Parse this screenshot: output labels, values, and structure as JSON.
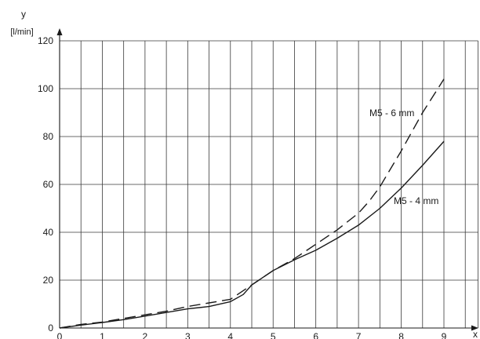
{
  "chart_data": {
    "type": "line",
    "xlabel": "x",
    "ylabel": "y",
    "yunit": "[l/min]",
    "xlim": [
      0,
      9.8
    ],
    "ylim": [
      0,
      120
    ],
    "xticks": [
      0,
      1,
      2,
      3,
      4,
      5,
      6,
      7,
      8,
      9
    ],
    "yticks": [
      0,
      20,
      40,
      60,
      80,
      100,
      120
    ],
    "grid": true,
    "series": [
      {
        "name": "M5 - 6 mm",
        "style": "dashed",
        "color": "#1a1a1a",
        "x": [
          0,
          0.5,
          1,
          1.5,
          2,
          2.5,
          3,
          3.5,
          4,
          4.5,
          5,
          5.5,
          6,
          6.5,
          7,
          7.25,
          7.5,
          8,
          8.5,
          9
        ],
        "y": [
          0,
          1.5,
          2.5,
          4,
          5.5,
          7,
          9,
          10.5,
          12,
          18,
          24,
          29,
          35,
          41,
          48,
          53,
          59,
          74,
          90,
          104
        ]
      },
      {
        "name": "M5 - 4 mm",
        "style": "solid",
        "color": "#1a1a1a",
        "x": [
          0,
          0.5,
          1,
          1.5,
          2,
          2.5,
          3,
          3.5,
          4,
          4.3,
          4.5,
          5,
          5.5,
          6,
          6.5,
          7,
          7.5,
          8,
          8.5,
          9
        ],
        "y": [
          0,
          1.2,
          2.3,
          3.5,
          5,
          6.5,
          8,
          9,
          11,
          14,
          18,
          24,
          28.5,
          32.5,
          37.5,
          43,
          50,
          58.5,
          68,
          78
        ]
      }
    ],
    "annotations": [
      {
        "text": "M5 - 6 mm",
        "series": 0
      },
      {
        "text": "M5 - 4 mm",
        "series": 1
      }
    ]
  }
}
